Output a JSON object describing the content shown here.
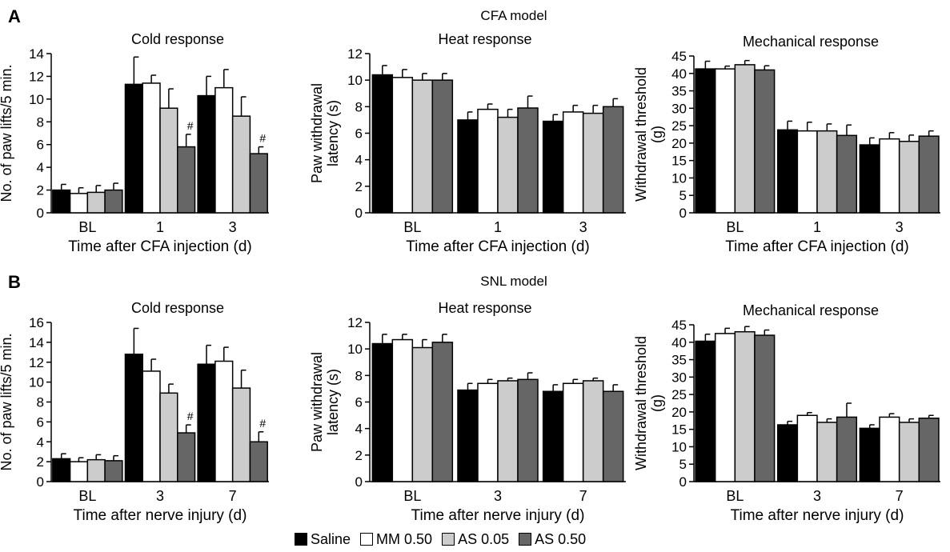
{
  "panels": {
    "A": {
      "letter": "A",
      "model_title": "CFA model"
    },
    "B": {
      "letter": "B",
      "model_title": "SNL model"
    }
  },
  "legend": [
    {
      "name": "Saline",
      "color": "#000000"
    },
    {
      "name": "MM 0.50",
      "color": "#ffffff"
    },
    {
      "name": "AS 0.05",
      "color": "#cccccc"
    },
    {
      "name": "AS 0.50",
      "color": "#666666"
    }
  ],
  "chart_data": [
    {
      "type": "bar",
      "title": "Cold response",
      "ylabel": "No. of paw lifts/5 min.",
      "xlabel": "Time after CFA injection (d)",
      "categories": [
        "BL",
        "1",
        "3"
      ],
      "ylim": [
        0,
        14
      ],
      "yticks": [
        0,
        2,
        4,
        6,
        8,
        10,
        12,
        14
      ],
      "series": [
        {
          "name": "Saline",
          "values": [
            2.0,
            11.3,
            10.3
          ],
          "errors": [
            0.5,
            2.4,
            1.7
          ]
        },
        {
          "name": "MM 0.50",
          "values": [
            1.7,
            11.4,
            11.0
          ],
          "errors": [
            0.5,
            0.7,
            1.6
          ]
        },
        {
          "name": "AS 0.05",
          "values": [
            1.8,
            9.2,
            8.5
          ],
          "errors": [
            0.6,
            1.7,
            1.7
          ]
        },
        {
          "name": "AS 0.50",
          "values": [
            2.0,
            5.8,
            5.2
          ],
          "errors": [
            0.6,
            1.1,
            0.6
          ]
        }
      ],
      "annotations": [
        {
          "text": "#",
          "category": "1",
          "series": "AS 0.50"
        },
        {
          "text": "#",
          "category": "3",
          "series": "AS 0.50"
        }
      ]
    },
    {
      "type": "bar",
      "title": "Heat response",
      "ylabel": "Paw withdrawal latency (s)",
      "xlabel": "Time after CFA injection (d)",
      "categories": [
        "BL",
        "1",
        "3"
      ],
      "ylim": [
        0,
        12
      ],
      "yticks": [
        0,
        2,
        4,
        6,
        8,
        10,
        12
      ],
      "series": [
        {
          "name": "Saline",
          "values": [
            10.4,
            7.0,
            6.9
          ],
          "errors": [
            0.7,
            0.6,
            0.5
          ]
        },
        {
          "name": "MM 0.50",
          "values": [
            10.2,
            7.8,
            7.6
          ],
          "errors": [
            0.6,
            0.4,
            0.5
          ]
        },
        {
          "name": "AS 0.05",
          "values": [
            10.0,
            7.2,
            7.5
          ],
          "errors": [
            0.5,
            0.6,
            0.6
          ]
        },
        {
          "name": "AS 0.50",
          "values": [
            10.0,
            7.9,
            8.0
          ],
          "errors": [
            0.5,
            0.9,
            0.6
          ]
        }
      ],
      "annotations": []
    },
    {
      "type": "bar",
      "title": "Mechanical response",
      "ylabel": "Withdrawal threshold (g)",
      "xlabel": "Time after CFA injection (d)",
      "categories": [
        "BL",
        "1",
        "3"
      ],
      "ylim": [
        0,
        45
      ],
      "yticks": [
        0,
        5,
        10,
        15,
        20,
        25,
        30,
        35,
        40,
        45
      ],
      "series": [
        {
          "name": "Saline",
          "values": [
            41.3,
            23.8,
            19.5
          ],
          "errors": [
            2.2,
            2.5,
            2.0
          ]
        },
        {
          "name": "MM 0.50",
          "values": [
            41.3,
            23.5,
            21.2
          ],
          "errors": [
            0.8,
            2.5,
            1.8
          ]
        },
        {
          "name": "AS 0.05",
          "values": [
            42.5,
            23.5,
            20.5
          ],
          "errors": [
            1.2,
            2.0,
            1.8
          ]
        },
        {
          "name": "AS 0.50",
          "values": [
            41.0,
            22.2,
            22.0
          ],
          "errors": [
            1.2,
            3.0,
            1.5
          ]
        }
      ],
      "annotations": []
    },
    {
      "type": "bar",
      "title": "Cold response",
      "ylabel": "No. of paw lifts/5 min.",
      "xlabel": "Time after nerve injury (d)",
      "categories": [
        "BL",
        "3",
        "7"
      ],
      "ylim": [
        0,
        16
      ],
      "yticks": [
        0,
        2,
        4,
        6,
        8,
        10,
        12,
        14,
        16
      ],
      "series": [
        {
          "name": "Saline",
          "values": [
            2.3,
            12.8,
            11.8
          ],
          "errors": [
            0.5,
            2.6,
            1.9
          ]
        },
        {
          "name": "MM 0.50",
          "values": [
            2.0,
            11.1,
            12.1
          ],
          "errors": [
            0.4,
            1.2,
            1.4
          ]
        },
        {
          "name": "AS 0.05",
          "values": [
            2.2,
            8.9,
            9.4
          ],
          "errors": [
            0.5,
            0.9,
            1.8
          ]
        },
        {
          "name": "AS 0.50",
          "values": [
            2.1,
            4.9,
            4.0
          ],
          "errors": [
            0.5,
            0.8,
            1.0
          ]
        }
      ],
      "annotations": [
        {
          "text": "#",
          "category": "3",
          "series": "AS 0.50"
        },
        {
          "text": "#",
          "category": "7",
          "series": "AS 0.50"
        }
      ]
    },
    {
      "type": "bar",
      "title": "Heat response",
      "ylabel": "Paw withdrawal latency (s)",
      "xlabel": "Time after nerve injury (d)",
      "categories": [
        "BL",
        "3",
        "7"
      ],
      "ylim": [
        0,
        12
      ],
      "yticks": [
        0,
        2,
        4,
        6,
        8,
        10,
        12
      ],
      "series": [
        {
          "name": "Saline",
          "values": [
            10.4,
            6.9,
            6.8
          ],
          "errors": [
            0.7,
            0.5,
            0.5
          ]
        },
        {
          "name": "MM 0.50",
          "values": [
            10.7,
            7.4,
            7.4
          ],
          "errors": [
            0.4,
            0.3,
            0.3
          ]
        },
        {
          "name": "AS 0.05",
          "values": [
            10.1,
            7.6,
            7.6
          ],
          "errors": [
            0.6,
            0.2,
            0.2
          ]
        },
        {
          "name": "AS 0.50",
          "values": [
            10.5,
            7.7,
            6.8
          ],
          "errors": [
            0.6,
            0.5,
            0.5
          ]
        }
      ],
      "annotations": []
    },
    {
      "type": "bar",
      "title": "Mechanical response",
      "ylabel": "Withdrawal threshold (g)",
      "xlabel": "Time after nerve injury (d)",
      "categories": [
        "BL",
        "3",
        "7"
      ],
      "ylim": [
        0,
        45
      ],
      "yticks": [
        0,
        5,
        10,
        15,
        20,
        25,
        30,
        35,
        40,
        45
      ],
      "series": [
        {
          "name": "Saline",
          "values": [
            40.3,
            16.3,
            15.3
          ],
          "errors": [
            2.0,
            1.0,
            1.0
          ]
        },
        {
          "name": "MM 0.50",
          "values": [
            42.5,
            19.0,
            18.5
          ],
          "errors": [
            1.5,
            0.8,
            1.0
          ]
        },
        {
          "name": "AS 0.05",
          "values": [
            43.0,
            17.0,
            17.0
          ],
          "errors": [
            1.5,
            1.0,
            1.0
          ]
        },
        {
          "name": "AS 0.50",
          "values": [
            42.0,
            18.5,
            18.2
          ],
          "errors": [
            1.5,
            4.0,
            0.8
          ]
        }
      ],
      "annotations": []
    }
  ]
}
